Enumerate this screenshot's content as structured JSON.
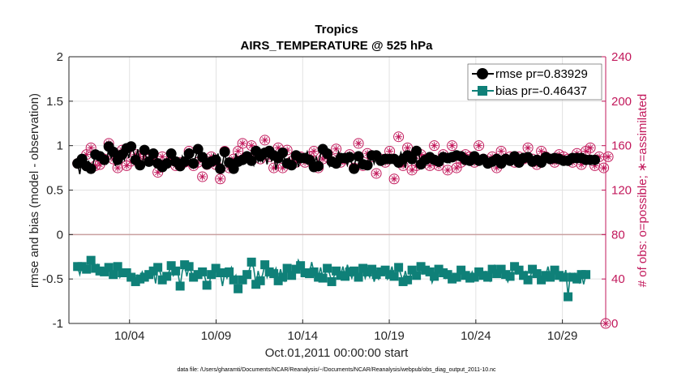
{
  "chart_data": {
    "type": "line",
    "title": "Tropics",
    "subtitle": "AIRS_TEMPERATURE @ 525 hPa",
    "xlabel": "Oct.01,2011 00:00:00 start",
    "ylabel": "rmse and bias (model - observation)",
    "ylabel_right": "# of obs: o=possible; ∗=assimilated",
    "ylim": [
      -1,
      2
    ],
    "ylim_right": [
      0,
      240
    ],
    "xlim": [
      0.5,
      31.5
    ],
    "yticks": [
      "-1",
      "-0.5",
      "0",
      "0.5",
      "1",
      "1.5",
      "2"
    ],
    "yticks_right": [
      "0",
      "40",
      "80",
      "120",
      "160",
      "200",
      "240"
    ],
    "xticks": [
      {
        "x": 4,
        "label": "10/04"
      },
      {
        "x": 9,
        "label": "10/09"
      },
      {
        "x": 14,
        "label": "10/14"
      },
      {
        "x": 19,
        "label": "10/19"
      },
      {
        "x": 24,
        "label": "10/24"
      },
      {
        "x": 29,
        "label": "10/29"
      }
    ],
    "footnote": "data file: /Users/gharamti/Documents/NCAR/Reanalysis/~/Documents/NCAR/Reanalysis/webpub/obs_diag_output_2011-10.nc",
    "legend": {
      "rmse": "rmse pr=0.83929",
      "bias": "bias pr=-0.46437"
    },
    "colors": {
      "rmse": "#000000",
      "bias": "#0f8078",
      "obs": "#c2185b",
      "zero_line": "#c9a0a0",
      "grid": "#e2e2e2"
    },
    "series": [
      {
        "name": "rmse",
        "values": [
          0.8,
          0.68,
          0.85,
          0.82,
          0.77,
          0.82,
          0.74,
          0.8,
          0.9,
          0.86,
          0.88,
          0.92,
          0.84,
          0.8,
          0.99,
          0.86,
          0.93,
          0.77,
          0.84,
          0.8,
          0.9,
          0.84,
          0.97,
          0.86,
          0.99,
          0.94,
          0.84,
          0.96,
          0.78,
          0.79,
          0.95,
          0.84,
          0.82,
          0.87,
          0.91,
          0.92,
          0.8,
          0.83,
          0.76,
          0.84,
          0.8,
          0.88,
          0.91,
          0.88,
          0.82,
          0.81,
          0.77,
          0.88,
          0.82,
          0.94,
          0.91,
          0.78,
          0.8,
          0.88,
          0.96,
          0.85,
          0.87,
          0.91,
          0.79,
          0.79,
          0.82,
          0.9,
          0.84,
          0.91,
          0.74,
          0.8,
          0.93,
          0.77,
          0.81,
          0.82,
          0.74,
          0.91,
          0.82,
          0.88,
          0.84,
          0.86,
          0.88,
          0.81,
          0.83,
          0.78,
          0.94,
          0.82,
          0.88,
          0.82,
          0.92,
          0.79,
          0.94,
          0.83,
          0.89,
          0.73,
          0.86,
          0.84,
          0.92,
          0.84,
          0.8,
          0.86,
          0.78,
          0.9,
          0.89,
          0.76,
          0.86,
          0.82,
          0.86,
          0.93,
          0.84,
          0.84,
          0.76,
          0.88,
          0.77,
          0.91,
          0.96,
          0.86,
          0.91,
          0.77,
          0.82,
          0.86,
          0.8,
          0.93,
          0.86,
          0.89,
          0.86,
          0.78,
          0.87,
          0.8,
          0.74,
          0.89,
          0.88,
          0.8,
          0.79,
          0.76,
          0.78,
          0.81,
          0.89,
          0.8,
          0.89,
          0.79,
          0.83,
          0.8,
          0.85,
          0.88,
          0.85,
          0.83,
          0.85,
          0.85,
          0.81,
          0.92,
          0.85,
          0.75,
          0.89,
          0.84,
          0.85,
          0.85,
          0.94,
          0.91,
          0.79,
          0.86,
          0.84,
          0.8,
          0.87,
          0.85,
          0.84,
          0.88,
          0.82,
          0.85,
          0.87,
          0.82,
          0.86,
          0.81,
          0.87,
          0.83,
          0.89,
          0.88,
          0.88,
          0.83,
          0.84,
          0.86,
          0.83,
          0.81,
          0.88,
          0.85,
          0.83,
          0.86,
          0.85,
          0.85,
          0.8,
          0.83,
          0.82,
          0.84,
          0.85,
          0.88,
          0.8,
          0.85,
          0.85,
          0.84,
          0.83,
          0.84,
          0.88,
          0.84,
          0.81,
          0.86,
          0.86,
          0.85,
          0.87,
          0.81,
          0.82,
          0.87,
          0.84,
          0.79,
          0.81,
          0.83,
          0.87,
          0.86,
          0.85,
          0.84,
          0.86,
          0.81,
          0.85,
          0.87,
          0.83,
          0.84,
          0.83,
          0.85,
          0.86,
          0.82,
          0.86,
          0.82,
          0.86,
          0.86,
          0.84,
          0.83,
          0.84,
          0.84,
          0.84,
          0.84
        ]
      },
      {
        "name": "bias",
        "values": [
          -0.36,
          -0.45,
          -0.36,
          -0.34,
          -0.39,
          -0.4,
          -0.29,
          -0.41,
          -0.38,
          -0.34,
          -0.41,
          -0.44,
          -0.42,
          -0.4,
          -0.37,
          -0.44,
          -0.45,
          -0.38,
          -0.36,
          -0.48,
          -0.43,
          -0.4,
          -0.43,
          -0.41,
          -0.48,
          -0.51,
          -0.53,
          -0.46,
          -0.5,
          -0.42,
          -0.48,
          -0.46,
          -0.45,
          -0.48,
          -0.41,
          -0.55,
          -0.37,
          -0.42,
          -0.51,
          -0.44,
          -0.47,
          -0.42,
          -0.35,
          -0.46,
          -0.41,
          -0.43,
          -0.58,
          -0.41,
          -0.34,
          -0.47,
          -0.36,
          -0.42,
          -0.48,
          -0.47,
          -0.45,
          -0.46,
          -0.42,
          -0.47,
          -0.57,
          -0.55,
          -0.45,
          -0.37,
          -0.38,
          -0.46,
          -0.43,
          -0.58,
          -0.43,
          -0.49,
          -0.42,
          -0.37,
          -0.51,
          -0.46,
          -0.61,
          -0.49,
          -0.51,
          -0.47,
          -0.45,
          -0.4,
          -0.31,
          -0.38,
          -0.56,
          -0.41,
          -0.52,
          -0.45,
          -0.34,
          -0.48,
          -0.42,
          -0.47,
          -0.44,
          -0.38,
          -0.52,
          -0.39,
          -0.48,
          -0.52,
          -0.38,
          -0.43,
          -0.46,
          -0.38,
          -0.39,
          -0.29,
          -0.35,
          -0.42,
          -0.43,
          -0.4,
          -0.44,
          -0.31,
          -0.42,
          -0.45,
          -0.48,
          -0.37,
          -0.49,
          -0.44,
          -0.38,
          -0.44,
          -0.53,
          -0.47,
          -0.41,
          -0.39,
          -0.46,
          -0.36,
          -0.47,
          -0.34,
          -0.42,
          -0.49,
          -0.41,
          -0.5,
          -0.48,
          -0.43,
          -0.38,
          -0.49,
          -0.42,
          -0.48,
          -0.39,
          -0.53,
          -0.45,
          -0.5,
          -0.42,
          -0.41,
          -0.4,
          -0.5,
          -0.45,
          -0.36,
          -0.47,
          -0.5,
          -0.37,
          -0.45,
          -0.53,
          -0.41,
          -0.51,
          -0.48,
          -0.4,
          -0.39,
          -0.46,
          -0.42,
          -0.36,
          -0.44,
          -0.4,
          -0.44,
          -0.42,
          -0.54,
          -0.47,
          -0.36,
          -0.39,
          -0.41,
          -0.43,
          -0.49,
          -0.45,
          -0.43,
          -0.5,
          -0.45,
          -0.48,
          -0.41,
          -0.4,
          -0.38,
          -0.46,
          -0.45,
          -0.49,
          -0.42,
          -0.48,
          -0.41,
          -0.42,
          -0.39,
          -0.46,
          -0.42,
          -0.48,
          -0.52,
          -0.39,
          -0.35,
          -0.44,
          -0.43,
          -0.39,
          -0.47,
          -0.45,
          -0.53,
          -0.47,
          -0.41,
          -0.36,
          -0.44,
          -0.4,
          -0.37,
          -0.46,
          -0.42,
          -0.51,
          -0.48,
          -0.39,
          -0.46,
          -0.44,
          -0.49,
          -0.51,
          -0.5,
          -0.46,
          -0.36,
          -0.48,
          -0.43,
          -0.4,
          -0.41,
          -0.46,
          -0.44,
          -0.48,
          -0.4,
          -0.7,
          -0.44,
          -0.48,
          -0.44,
          -0.5,
          -0.54,
          -0.45,
          -0.56,
          -0.45,
          -0.48
        ]
      },
      {
        "name": "obs_count",
        "values": [
          144,
          139,
          145,
          150,
          152,
          154,
          158,
          148,
          142,
          145,
          143,
          141,
          148,
          165,
          162,
          148,
          148,
          146,
          140,
          148,
          156,
          150,
          142,
          130,
          146,
          160,
          152,
          140,
          146,
          146,
          152,
          148,
          148,
          136,
          152,
          158,
          136,
          164,
          150,
          138,
          144,
          150,
          148,
          158,
          142,
          152,
          145,
          155,
          145,
          152,
          155,
          142,
          142,
          148,
          145,
          155,
          132,
          160,
          143,
          148,
          150,
          154,
          143,
          157,
          130,
          148,
          155,
          152,
          140,
          145,
          148,
          155,
          155,
          145,
          162,
          150,
          150,
          143,
          160,
          150,
          155,
          163,
          148,
          132,
          165,
          148,
          150,
          155,
          140,
          155,
          158,
          143,
          140,
          148,
          156,
          130,
          146,
          150,
          145,
          160,
          150,
          142,
          145,
          155,
          150,
          138,
          155,
          147,
          140,
          144,
          148,
          145,
          150,
          155,
          148,
          140,
          157,
          166,
          145,
          130,
          148,
          150,
          152,
          145,
          140,
          150,
          162,
          145,
          142,
          150,
          153,
          162,
          150,
          140,
          135,
          142,
          148,
          160,
          145,
          150,
          155,
          142,
          130,
          155,
          168,
          148,
          142,
          150,
          158,
          135,
          138,
          150,
          142,
          146,
          152,
          158,
          148,
          138,
          142,
          155,
          160,
          150,
          142,
          150,
          152,
          144,
          138,
          152,
          160,
          148,
          140,
          150,
          145,
          140,
          152,
          143,
          150,
          158,
          145,
          152,
          160,
          138,
          148,
          145,
          146,
          143,
          150,
          152,
          140,
          146,
          155,
          152,
          148,
          142,
          150,
          158,
          145,
          142,
          150,
          153,
          148,
          145,
          158,
          142,
          148,
          150,
          143,
          152,
          155,
          145,
          150,
          140,
          148,
          162,
          145,
          147,
          152,
          142,
          150,
          155,
          148,
          140,
          145,
          150,
          153,
          148,
          143,
          150,
          155,
          160,
          158,
          145,
          142,
          160,
          150,
          134,
          140,
          145,
          150,
          153
        ]
      }
    ]
  }
}
